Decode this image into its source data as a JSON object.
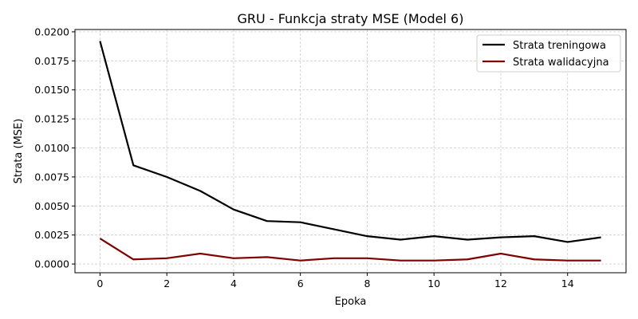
{
  "chart_data": {
    "type": "line",
    "title": "GRU - Funkcja straty MSE (Model 6)",
    "xlabel": "Epoka",
    "ylabel": "Strata (MSE)",
    "xlim": [
      -0.75,
      15.75
    ],
    "ylim": [
      -0.00075,
      0.0202
    ],
    "xticks": [
      0,
      2,
      4,
      6,
      8,
      10,
      12,
      14
    ],
    "xtick_labels": [
      "0",
      "2",
      "4",
      "6",
      "8",
      "10",
      "12",
      "14"
    ],
    "yticks": [
      0,
      0.0025,
      0.005,
      0.0075,
      0.01,
      0.0125,
      0.015,
      0.0175,
      0.02
    ],
    "ytick_labels": [
      "0.0000",
      "0.0025",
      "0.0050",
      "0.0075",
      "0.0100",
      "0.0125",
      "0.0150",
      "0.0175",
      "0.0200"
    ],
    "grid": true,
    "legend_position": "top-right",
    "x": [
      0,
      1,
      2,
      3,
      4,
      5,
      6,
      7,
      8,
      9,
      10,
      11,
      12,
      13,
      14,
      15
    ],
    "series": [
      {
        "name": "Strata treningowa",
        "color": "#000000",
        "values": [
          0.0192,
          0.0085,
          0.0075,
          0.0063,
          0.0047,
          0.0037,
          0.0036,
          0.003,
          0.0024,
          0.0021,
          0.0024,
          0.0021,
          0.0023,
          0.0024,
          0.0019,
          0.0023
        ]
      },
      {
        "name": "Strata walidacyjna",
        "color": "#800000",
        "values": [
          0.0022,
          0.0004,
          0.0005,
          0.0009,
          0.0005,
          0.0006,
          0.0003,
          0.0005,
          0.0005,
          0.0003,
          0.0003,
          0.0004,
          0.0009,
          0.0004,
          0.0003,
          0.0003
        ]
      }
    ]
  }
}
